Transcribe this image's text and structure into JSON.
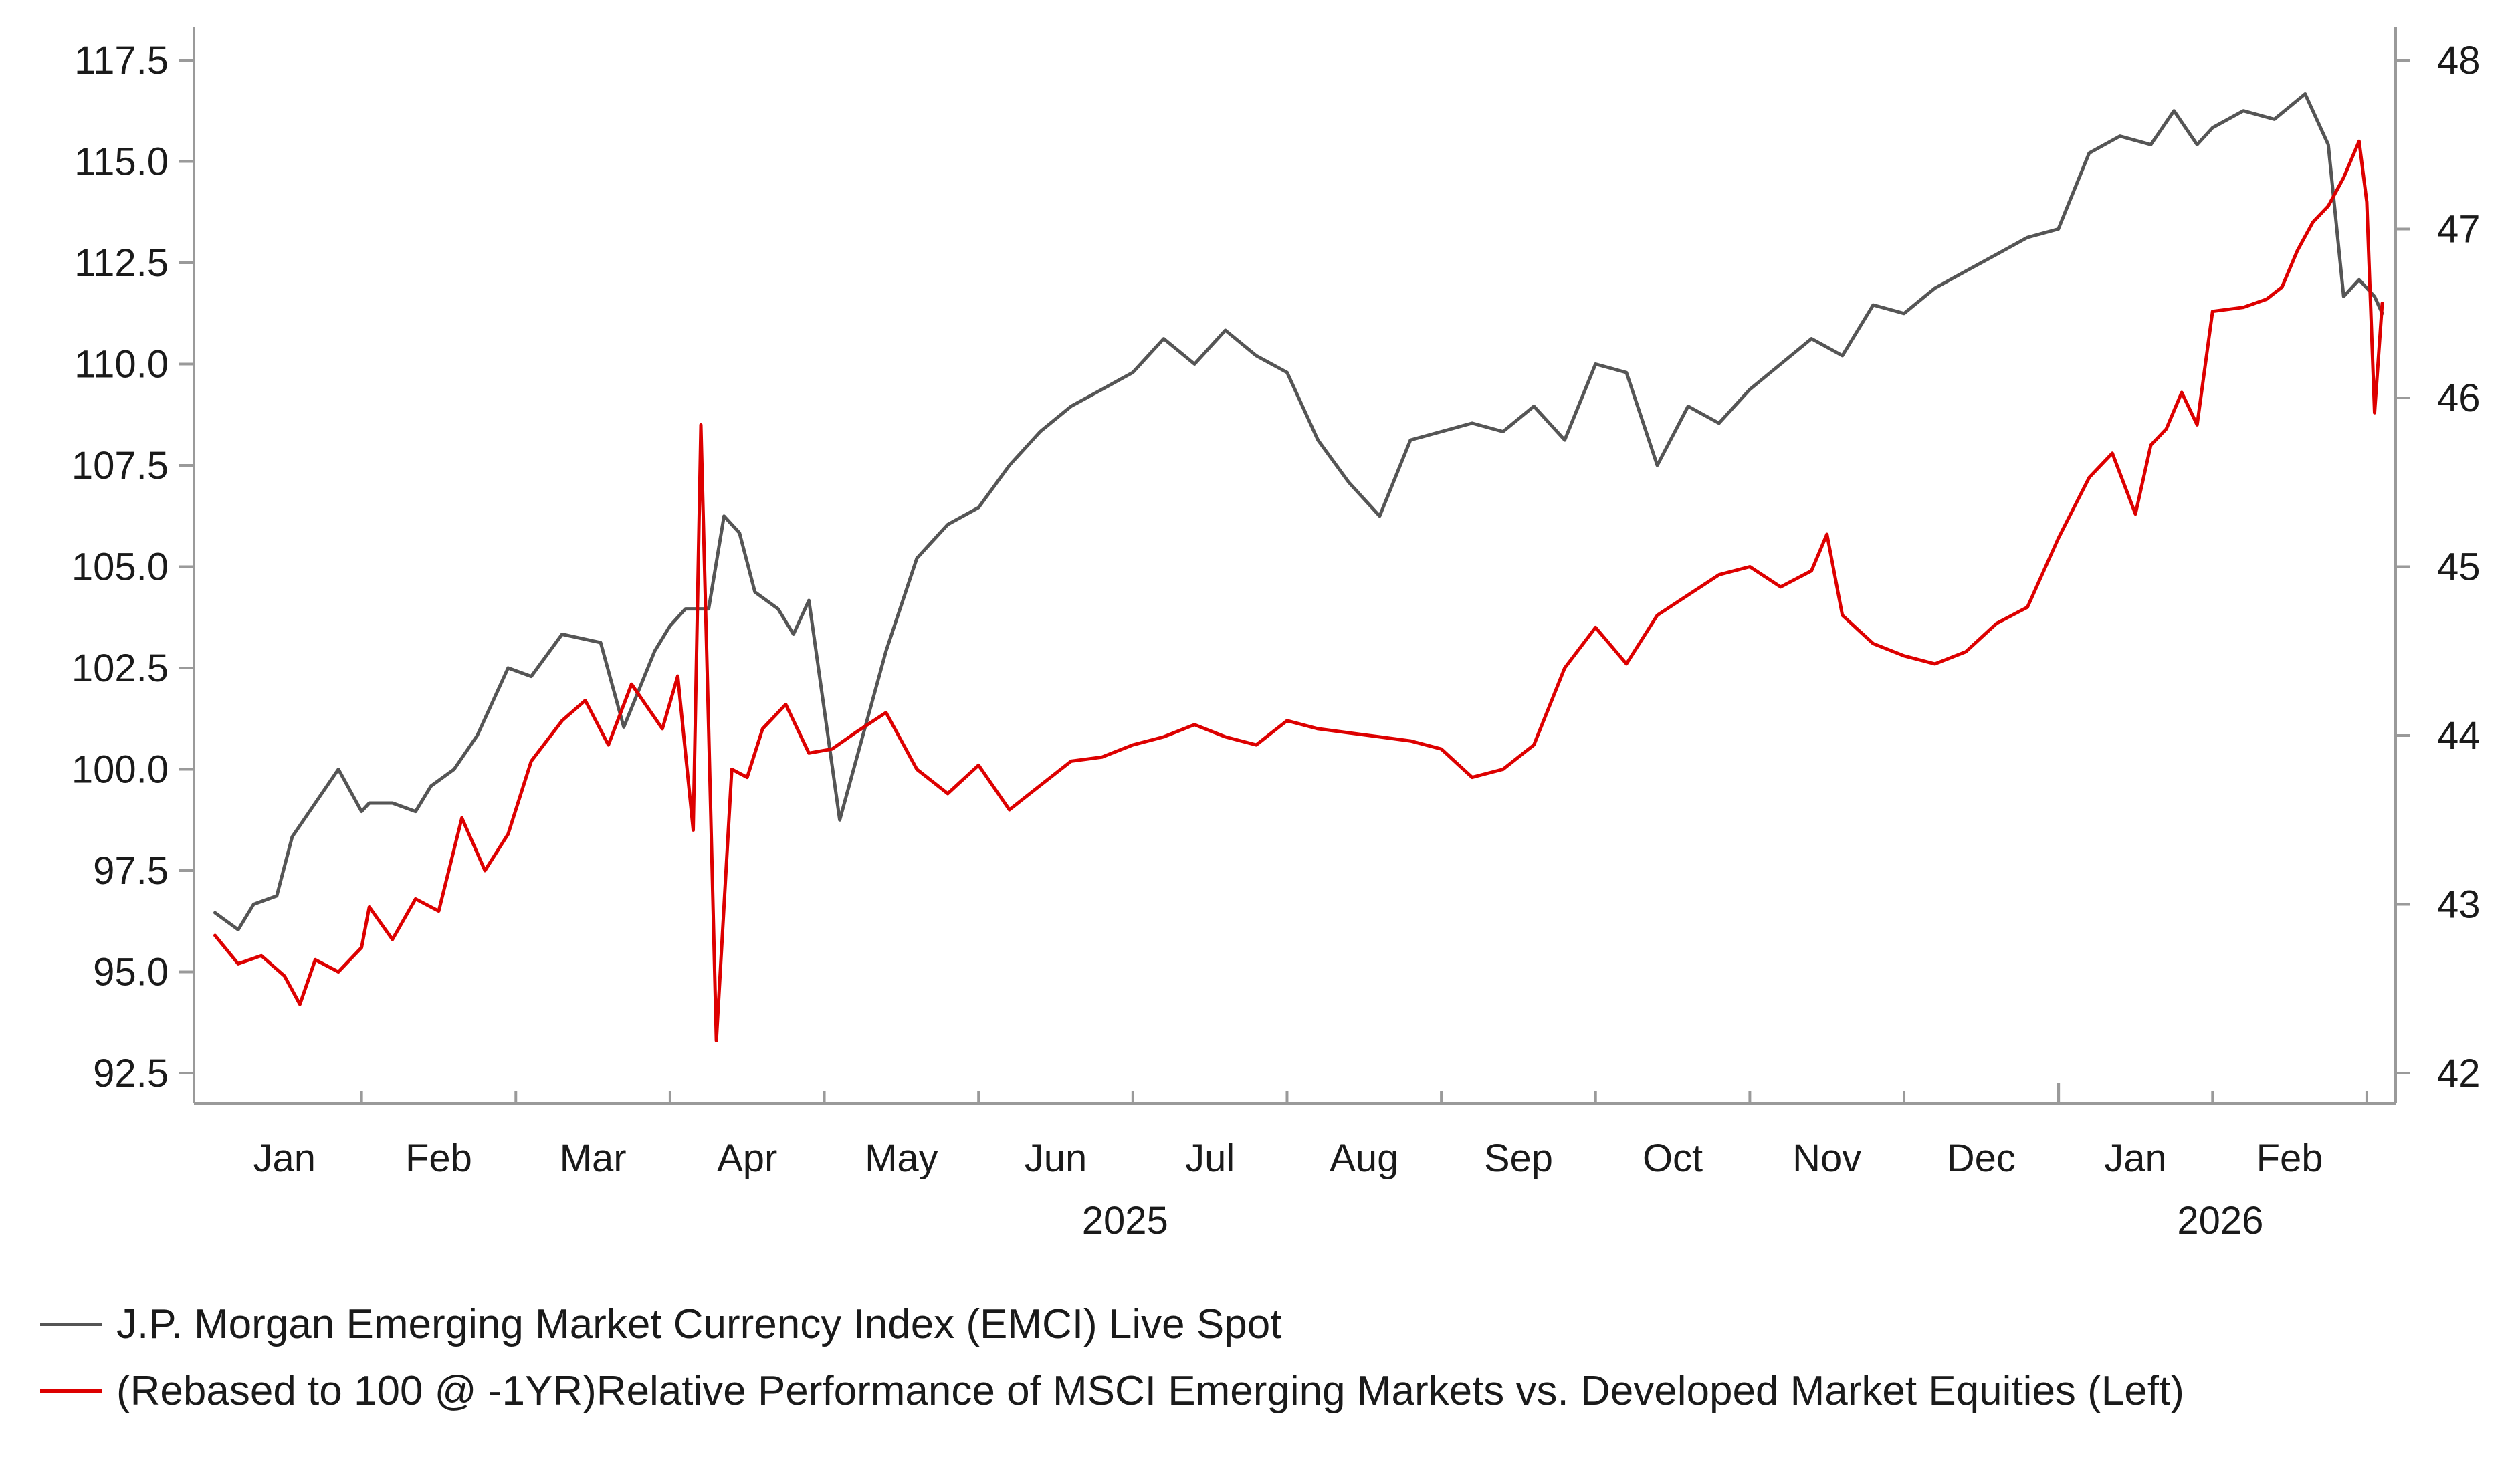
{
  "chart_data": {
    "type": "line",
    "title": "",
    "xlabel": "",
    "ylabel_left": "",
    "ylabel_right": "",
    "y_left": {
      "min": 92.5,
      "max": 117.5,
      "ticks": [
        "117.5",
        "115.0",
        "112.5",
        "110.0",
        "107.5",
        "105.0",
        "102.5",
        "100.0",
        "97.5",
        "95.0",
        "92.5"
      ],
      "tick_values": [
        117.5,
        115,
        112.5,
        110,
        107.5,
        105,
        102.5,
        100,
        97.5,
        95,
        92.5
      ]
    },
    "y_right": {
      "min": 42,
      "max": 48,
      "ticks": [
        "48",
        "47",
        "46",
        "45",
        "44",
        "43",
        "42"
      ],
      "tick_values": [
        48,
        47,
        46,
        45,
        44,
        43,
        42
      ]
    },
    "x_range": [
      0,
      14.1
    ],
    "x_unit": "months since 2025-01-01",
    "months": [
      "Jan",
      "Feb",
      "Mar",
      "Apr",
      "May",
      "Jun",
      "Jul",
      "Aug",
      "Sep",
      "Oct",
      "Nov",
      "Dec",
      "Jan",
      "Feb"
    ],
    "years": [
      {
        "label": "2025",
        "center": 5.95
      },
      {
        "label": "2026",
        "center": 13.05
      }
    ],
    "year_separator": 12,
    "series": [
      {
        "name": "J.P. Morgan Emerging Market Currency Index (EMCI) Live Spot",
        "color": "#555555",
        "axis": "right",
        "x": [
          0.05,
          0.2,
          0.3,
          0.45,
          0.55,
          0.7,
          0.85,
          1.0,
          1.05,
          1.2,
          1.35,
          1.45,
          1.6,
          1.75,
          1.95,
          2.1,
          2.3,
          2.55,
          2.7,
          2.9,
          3.0,
          3.1,
          3.25,
          3.35,
          3.45,
          3.55,
          3.7,
          3.8,
          3.9,
          4.0,
          4.1,
          4.25,
          4.4,
          4.6,
          4.8,
          5.0,
          5.2,
          5.4,
          5.6,
          5.8,
          6.0,
          6.2,
          6.4,
          6.6,
          6.8,
          7.0,
          7.2,
          7.4,
          7.6,
          7.8,
          8.0,
          8.2,
          8.4,
          8.6,
          8.8,
          9.0,
          9.2,
          9.4,
          9.6,
          9.8,
          10.0,
          10.2,
          10.4,
          10.6,
          10.8,
          11.0,
          11.2,
          11.4,
          11.6,
          11.8,
          12.0,
          12.2,
          12.4,
          12.6,
          12.75,
          12.9,
          13.0,
          13.2,
          13.4,
          13.6,
          13.75,
          13.85,
          13.95,
          14.05,
          14.1
        ],
        "y": [
          42.95,
          42.85,
          43.0,
          43.05,
          43.4,
          43.6,
          43.8,
          43.55,
          43.6,
          43.6,
          43.55,
          43.7,
          43.8,
          44.0,
          44.4,
          44.35,
          44.6,
          44.55,
          44.05,
          44.5,
          44.65,
          44.75,
          44.75,
          45.3,
          45.2,
          44.85,
          44.75,
          44.6,
          44.8,
          44.15,
          43.5,
          44.0,
          44.5,
          45.05,
          45.25,
          45.35,
          45.6,
          45.8,
          45.95,
          46.05,
          46.15,
          46.35,
          46.2,
          46.4,
          46.25,
          46.15,
          45.75,
          45.5,
          45.3,
          45.75,
          45.8,
          45.85,
          45.8,
          45.95,
          45.75,
          46.2,
          46.15,
          45.6,
          45.95,
          45.85,
          46.05,
          46.2,
          46.35,
          46.25,
          46.55,
          46.5,
          46.65,
          46.75,
          46.85,
          46.95,
          47.0,
          47.45,
          47.55,
          47.5,
          47.7,
          47.5,
          47.6,
          47.7,
          47.65,
          47.8,
          47.5,
          46.6,
          46.7,
          46.6,
          46.5
        ]
      },
      {
        "name": "(Rebased to 100 @ -1YR)Relative Performance of MSCI Emerging Markets vs. Developed Market Equities (Left)",
        "color": "#dd0000",
        "axis": "left",
        "x": [
          0.05,
          0.2,
          0.35,
          0.5,
          0.6,
          0.7,
          0.85,
          1.0,
          1.05,
          1.2,
          1.35,
          1.5,
          1.65,
          1.8,
          1.95,
          2.1,
          2.3,
          2.45,
          2.6,
          2.75,
          2.95,
          3.05,
          3.15,
          3.2,
          3.25,
          3.3,
          3.4,
          3.5,
          3.6,
          3.75,
          3.9,
          4.05,
          4.2,
          4.4,
          4.6,
          4.8,
          5.0,
          5.2,
          5.4,
          5.6,
          5.8,
          6.0,
          6.2,
          6.4,
          6.6,
          6.8,
          7.0,
          7.2,
          7.4,
          7.6,
          7.8,
          8.0,
          8.2,
          8.4,
          8.6,
          8.8,
          9.0,
          9.2,
          9.4,
          9.6,
          9.8,
          10.0,
          10.2,
          10.4,
          10.5,
          10.6,
          10.8,
          11.0,
          11.2,
          11.4,
          11.6,
          11.8,
          12.0,
          12.2,
          12.35,
          12.5,
          12.6,
          12.7,
          12.8,
          12.9,
          13.0,
          13.2,
          13.35,
          13.45,
          13.55,
          13.65,
          13.75,
          13.85,
          13.95,
          14.0,
          14.05,
          14.1
        ],
        "y": [
          95.9,
          95.2,
          95.4,
          94.9,
          94.2,
          95.3,
          95.0,
          95.6,
          96.6,
          95.8,
          96.8,
          96.5,
          98.8,
          97.5,
          98.4,
          100.2,
          101.2,
          101.7,
          100.6,
          102.1,
          101.0,
          102.3,
          98.5,
          108.5,
          101.0,
          93.3,
          100.0,
          99.8,
          101.0,
          101.6,
          100.4,
          100.5,
          100.9,
          101.4,
          100.0,
          99.4,
          100.1,
          99.0,
          99.6,
          100.2,
          100.3,
          100.6,
          100.8,
          101.1,
          100.8,
          100.6,
          101.2,
          101.0,
          100.9,
          100.8,
          100.7,
          100.5,
          99.8,
          100.0,
          100.6,
          102.5,
          103.5,
          102.6,
          103.8,
          104.3,
          104.8,
          105.0,
          104.5,
          104.9,
          105.8,
          103.8,
          103.1,
          102.8,
          102.6,
          102.9,
          103.6,
          104.0,
          105.7,
          107.2,
          107.8,
          106.3,
          108.0,
          108.4,
          109.3,
          108.5,
          111.3,
          111.4,
          111.6,
          111.9,
          112.8,
          113.5,
          113.9,
          114.6,
          115.5,
          114.0,
          108.8,
          111.5
        ]
      }
    ]
  },
  "legend": [
    {
      "label": "J.P. Morgan Emerging Market Currency Index (EMCI) Live Spot",
      "color": "#555555"
    },
    {
      "label": "(Rebased to 100 @ -1YR)Relative Performance of MSCI Emerging Markets vs. Developed Market Equities (Left)",
      "color": "#dd0000"
    }
  ]
}
